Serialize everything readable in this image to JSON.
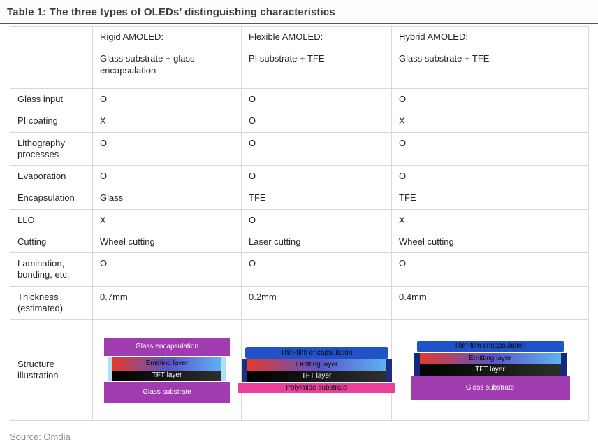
{
  "title": "Table 1: The three types of OLEDs’ distinguishing characteristics",
  "source": "Source: Omdia",
  "table": {
    "columns": [
      {
        "title": "Rigid AMOLED:",
        "subtitle": "Glass substrate + glass encapsulation"
      },
      {
        "title": "Flexible AMOLED:",
        "subtitle": "PI substrate + TFE"
      },
      {
        "title": "Hybrid AMOLED:",
        "subtitle": "Glass substrate + TFE"
      }
    ],
    "rows": [
      {
        "label": "Glass input",
        "values": [
          "O",
          "O",
          "O"
        ]
      },
      {
        "label": "PI coating",
        "values": [
          "X",
          "O",
          "X"
        ]
      },
      {
        "label": "Lithography processes",
        "values": [
          "O",
          "O",
          "O"
        ]
      },
      {
        "label": "Evaporation",
        "values": [
          "O",
          "O",
          "O"
        ]
      },
      {
        "label": "Encapsulation",
        "values": [
          "Glass",
          "TFE",
          "TFE"
        ]
      },
      {
        "label": "LLO",
        "values": [
          "X",
          "O",
          "X"
        ]
      },
      {
        "label": "Cutting",
        "values": [
          "Wheel cutting",
          "Laser cutting",
          "Wheel cutting"
        ]
      },
      {
        "label": "Lamination, bonding, etc.",
        "values": [
          "O",
          "O",
          "O"
        ]
      },
      {
        "label": "Thickness (estimated)",
        "values": [
          "0.7mm",
          "0.2mm",
          "0.4mm"
        ]
      }
    ],
    "illustration_label": "Structure illustration"
  },
  "illustrations": {
    "rigid": {
      "layers": [
        "Glass encapsulation",
        "Emitting layer",
        "TFT layer",
        "Glass substrate"
      ]
    },
    "flexible": {
      "layers": [
        "Thin-film encapsulation",
        "Emitting layer",
        "TFT layer",
        "Polyimide substrate"
      ]
    },
    "hybrid": {
      "layers": [
        "Thin-film encapsulation",
        "Emitting layer",
        "TFT layer",
        "Glass substrate"
      ]
    }
  },
  "colors": {
    "purple": "#a13bb0",
    "blue": "#2152c8",
    "pink": "#e8409b",
    "light_blue": "#aee0f8"
  }
}
